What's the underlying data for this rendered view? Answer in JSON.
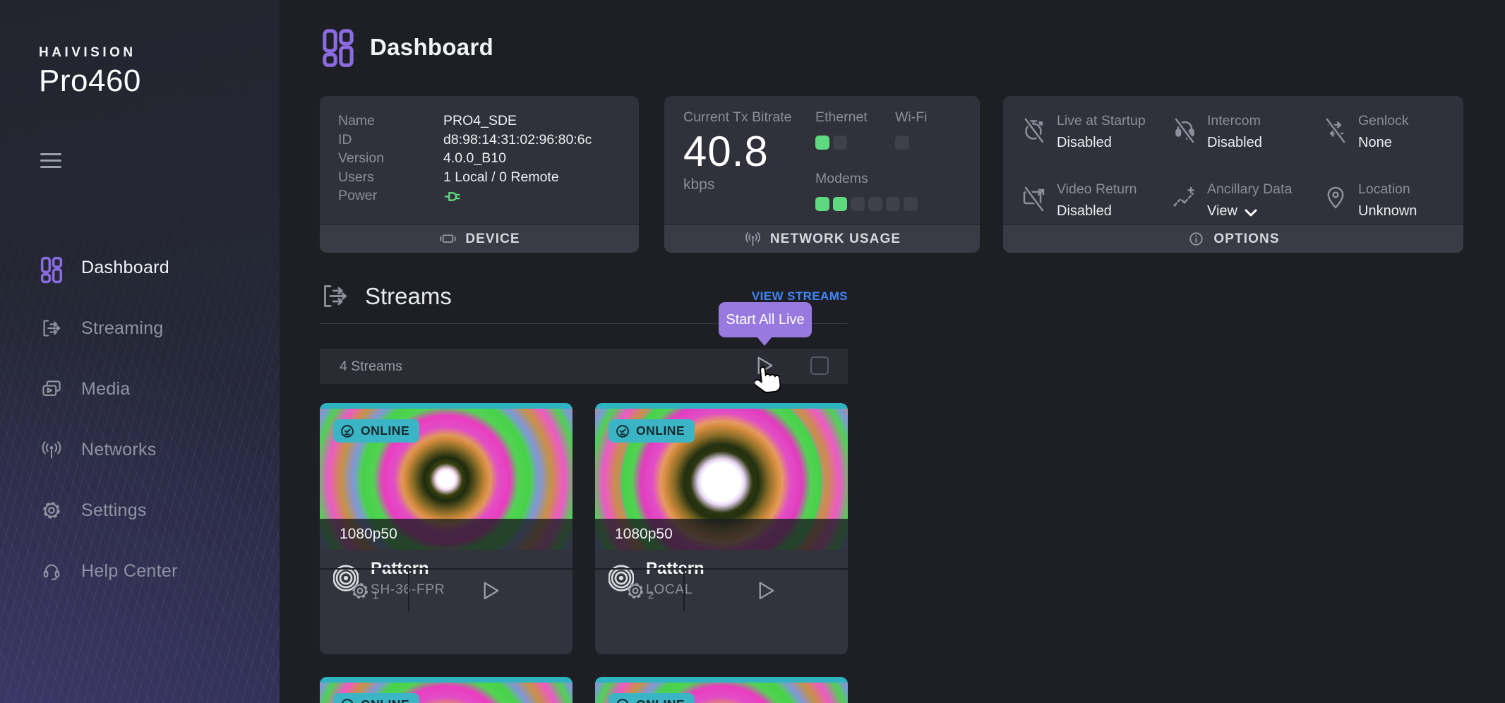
{
  "brand": {
    "company": "HAIVISION",
    "product": "Pro460"
  },
  "sidebar": {
    "items": [
      {
        "label": "Dashboard",
        "active": true
      },
      {
        "label": "Streaming",
        "active": false
      },
      {
        "label": "Media",
        "active": false
      },
      {
        "label": "Networks",
        "active": false
      },
      {
        "label": "Settings",
        "active": false
      },
      {
        "label": "Help Center",
        "active": false
      }
    ]
  },
  "page": {
    "title": "Dashboard"
  },
  "device": {
    "rows": [
      {
        "label": "Name",
        "value": "PRO4_SDE"
      },
      {
        "label": "ID",
        "value": "d8:98:14:31:02:96:80:6c"
      },
      {
        "label": "Version",
        "value": "4.0.0_B10"
      },
      {
        "label": "Users",
        "value": "1 Local / 0 Remote"
      }
    ],
    "power_label": "Power",
    "power_state": "on",
    "footer": "DEVICE"
  },
  "network": {
    "bitrate_label": "Current Tx Bitrate",
    "bitrate_value": "40.8",
    "bitrate_unit": "kbps",
    "ethernet_label": "Ethernet",
    "wifi_label": "Wi-Fi",
    "modems_label": "Modems",
    "indicators": {
      "ethernet": [
        "on",
        "off"
      ],
      "wifi": [
        "off"
      ],
      "modems": [
        "on",
        "on",
        "off",
        "off",
        "off",
        "off"
      ]
    },
    "footer": "NETWORK USAGE"
  },
  "options": {
    "items": [
      {
        "label": "Live at Startup",
        "value": "Disabled"
      },
      {
        "label": "Intercom",
        "value": "Disabled"
      },
      {
        "label": "Genlock",
        "value": "None"
      },
      {
        "label": "Video Return",
        "value": "Disabled"
      },
      {
        "label": "Ancillary Data",
        "value": "View",
        "has_dropdown": true
      },
      {
        "label": "Location",
        "value": "Unknown"
      }
    ],
    "footer": "OPTIONS"
  },
  "streams": {
    "title": "Streams",
    "view_link": "VIEW STREAMS",
    "tooltip": "Start All Live",
    "count_label": "4 Streams",
    "online_label": "ONLINE",
    "resolution": "1080p50",
    "cards": [
      {
        "title": "Pattern",
        "subtitle": "SH-36-FPR",
        "gear_number": "1",
        "status": "ONLINE",
        "resolution": "1080p50"
      },
      {
        "title": "Pattern",
        "subtitle": "LOCAL",
        "gear_number": "2",
        "status": "ONLINE",
        "resolution": "1080p50"
      }
    ]
  },
  "colors": {
    "accent_purple": "#8a6be0",
    "cyan": "#35b4c5",
    "green": "#5fd97f",
    "link_blue": "#3f86f8",
    "tooltip_purple": "#9879e0"
  }
}
